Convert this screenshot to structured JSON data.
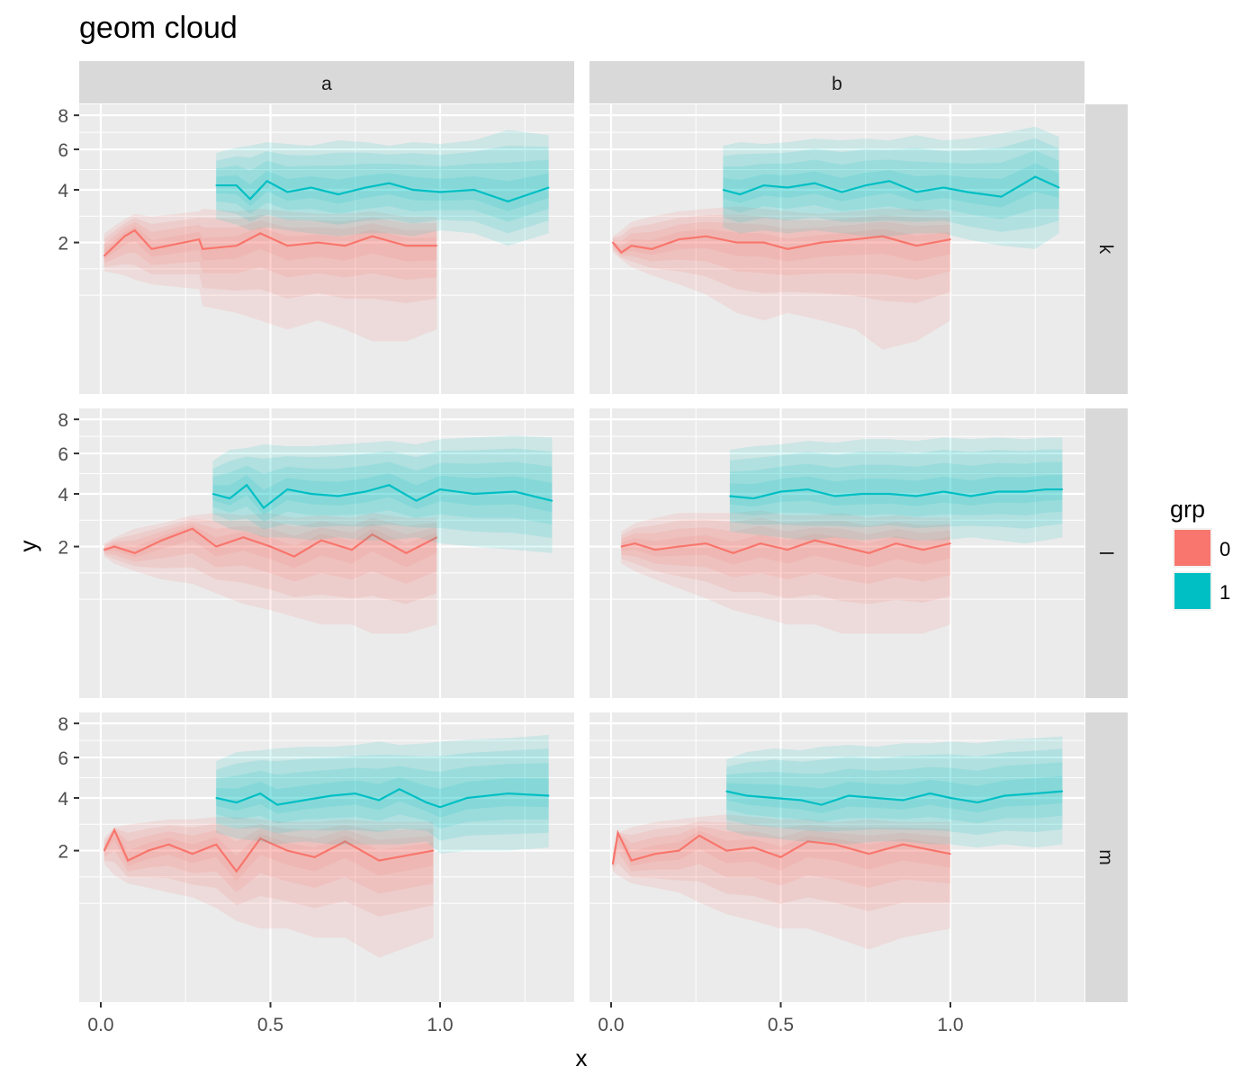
{
  "chart_data": {
    "type": "line",
    "title": "geom cloud",
    "xlabel": "x",
    "ylabel": "y",
    "y_scale": "sqrt",
    "xlim": [
      -0.06,
      1.4
    ],
    "ylim": [
      -0.07,
      9
    ],
    "x_ticks": [
      {
        "v": 0,
        "label": "0.0"
      },
      {
        "v": 0.5,
        "label": "0.5"
      },
      {
        "v": 1,
        "label": "1.0"
      }
    ],
    "y_ticks": [
      {
        "v": 2,
        "label": "2"
      },
      {
        "v": 4,
        "label": "4"
      },
      {
        "v": 6,
        "label": "6"
      },
      {
        "v": 8,
        "label": "8"
      }
    ],
    "grid": true,
    "facet_cols": [
      "a",
      "b"
    ],
    "facet_rows": [
      "k",
      "l",
      "m"
    ],
    "legend": {
      "title": "grp",
      "position": "right",
      "entries": [
        {
          "label": "0",
          "color": "#F8766D"
        },
        {
          "label": "1",
          "color": "#00BFC4"
        }
      ]
    },
    "series": [
      {
        "col": "a",
        "row": "k",
        "grp": "0",
        "x": [
          0.01,
          0.07,
          0.1,
          0.15,
          0.29,
          0.3,
          0.4,
          0.47,
          0.55,
          0.64,
          0.72,
          0.8,
          0.9,
          0.99
        ],
        "y": [
          1.6,
          2.2,
          2.4,
          1.8,
          2.1,
          1.8,
          1.9,
          2.3,
          1.9,
          2.0,
          1.9,
          2.2,
          1.9,
          1.9
        ],
        "lower": [
          1.2,
          1.1,
          1.0,
          0.9,
          0.8,
          0.5,
          0.4,
          0.3,
          0.2,
          0.3,
          0.2,
          0.1,
          0.1,
          0.2
        ],
        "upper": [
          2.3,
          2.8,
          3.0,
          2.9,
          3.1,
          3.2,
          3.1,
          3.2,
          3.1,
          3.0,
          3.0,
          3.1,
          2.9,
          2.9
        ]
      },
      {
        "col": "a",
        "row": "k",
        "grp": "1",
        "x": [
          0.34,
          0.4,
          0.44,
          0.49,
          0.55,
          0.62,
          0.7,
          0.78,
          0.85,
          0.92,
          1.0,
          1.1,
          1.2,
          1.32
        ],
        "y": [
          4.2,
          4.2,
          3.6,
          4.4,
          3.9,
          4.1,
          3.8,
          4.1,
          4.3,
          4.0,
          3.9,
          4.0,
          3.5,
          4.1
        ],
        "lower": [
          2.8,
          2.6,
          2.4,
          2.5,
          2.4,
          2.3,
          2.2,
          2.3,
          2.3,
          2.2,
          2.4,
          2.3,
          1.9,
          2.3
        ],
        "upper": [
          5.8,
          6.1,
          6.2,
          6.4,
          6.3,
          6.2,
          6.5,
          6.4,
          6.2,
          6.4,
          6.3,
          6.5,
          7.1,
          6.8
        ]
      },
      {
        "col": "b",
        "row": "k",
        "grp": "0",
        "x": [
          0.005,
          0.03,
          0.06,
          0.12,
          0.2,
          0.28,
          0.37,
          0.45,
          0.52,
          0.62,
          0.72,
          0.8,
          0.9,
          1.0
        ],
        "y": [
          2.0,
          1.7,
          1.9,
          1.8,
          2.1,
          2.2,
          2.0,
          2.0,
          1.8,
          2.0,
          2.1,
          2.2,
          1.9,
          2.1
        ],
        "lower": [
          1.7,
          1.5,
          1.3,
          1.1,
          0.9,
          0.7,
          0.4,
          0.3,
          0.4,
          0.3,
          0.2,
          0.05,
          0.1,
          0.3
        ],
        "upper": [
          2.2,
          2.4,
          2.7,
          2.9,
          3.1,
          3.2,
          3.3,
          3.2,
          3.1,
          3.0,
          3.1,
          3.2,
          3.2,
          3.1
        ]
      },
      {
        "col": "b",
        "row": "k",
        "grp": "1",
        "x": [
          0.33,
          0.38,
          0.45,
          0.52,
          0.6,
          0.68,
          0.75,
          0.82,
          0.9,
          0.98,
          1.05,
          1.15,
          1.25,
          1.32
        ],
        "y": [
          4.0,
          3.8,
          4.2,
          4.1,
          4.3,
          3.9,
          4.2,
          4.4,
          3.9,
          4.1,
          3.9,
          3.7,
          4.6,
          4.1
        ],
        "lower": [
          2.5,
          2.3,
          2.4,
          2.3,
          2.4,
          2.3,
          2.2,
          2.2,
          2.3,
          2.3,
          2.1,
          1.9,
          1.8,
          2.3
        ],
        "upper": [
          6.2,
          6.4,
          6.3,
          6.4,
          6.6,
          6.5,
          6.6,
          6.5,
          6.8,
          6.5,
          6.6,
          6.9,
          7.3,
          6.7
        ]
      },
      {
        "col": "a",
        "row": "l",
        "grp": "0",
        "x": [
          0.01,
          0.04,
          0.1,
          0.18,
          0.27,
          0.34,
          0.42,
          0.5,
          0.57,
          0.65,
          0.74,
          0.8,
          0.9,
          0.99
        ],
        "y": [
          1.9,
          2.0,
          1.8,
          2.2,
          2.6,
          2.0,
          2.3,
          2.0,
          1.7,
          2.2,
          1.9,
          2.4,
          1.8,
          2.3
        ],
        "lower": [
          1.7,
          1.5,
          1.3,
          1.1,
          1.0,
          0.8,
          0.6,
          0.5,
          0.4,
          0.3,
          0.3,
          0.2,
          0.2,
          0.3
        ],
        "upper": [
          2.1,
          2.3,
          2.6,
          2.8,
          3.1,
          3.2,
          3.1,
          3.2,
          3.0,
          3.1,
          3.0,
          3.2,
          3.0,
          3.0
        ]
      },
      {
        "col": "a",
        "row": "l",
        "grp": "1",
        "x": [
          0.33,
          0.38,
          0.43,
          0.48,
          0.55,
          0.62,
          0.7,
          0.78,
          0.85,
          0.93,
          1.0,
          1.1,
          1.22,
          1.33
        ],
        "y": [
          4.0,
          3.8,
          4.4,
          3.4,
          4.2,
          4.0,
          3.9,
          4.1,
          4.4,
          3.7,
          4.2,
          4.0,
          4.1,
          3.7
        ],
        "lower": [
          2.9,
          2.6,
          2.5,
          2.3,
          2.3,
          2.2,
          2.3,
          2.2,
          2.2,
          2.3,
          2.1,
          2.0,
          1.9,
          1.8
        ],
        "upper": [
          5.6,
          6.2,
          6.3,
          6.5,
          6.4,
          6.4,
          6.5,
          6.6,
          6.7,
          6.5,
          6.8,
          6.9,
          7.0,
          6.9
        ]
      },
      {
        "col": "b",
        "row": "l",
        "grp": "0",
        "x": [
          0.03,
          0.07,
          0.13,
          0.2,
          0.28,
          0.36,
          0.44,
          0.52,
          0.6,
          0.68,
          0.76,
          0.84,
          0.92,
          1.0
        ],
        "y": [
          2.0,
          2.1,
          1.9,
          2.0,
          2.1,
          1.8,
          2.1,
          1.9,
          2.2,
          2.0,
          1.8,
          2.1,
          1.9,
          2.1
        ],
        "lower": [
          1.5,
          1.3,
          1.1,
          0.9,
          0.7,
          0.5,
          0.4,
          0.3,
          0.3,
          0.2,
          0.2,
          0.2,
          0.2,
          0.3
        ],
        "upper": [
          2.5,
          2.8,
          3.0,
          3.2,
          3.2,
          3.2,
          3.3,
          3.1,
          3.1,
          3.2,
          3.0,
          3.1,
          3.0,
          3.0
        ]
      },
      {
        "col": "b",
        "row": "l",
        "grp": "1",
        "x": [
          0.35,
          0.42,
          0.5,
          0.58,
          0.66,
          0.74,
          0.82,
          0.9,
          0.98,
          1.06,
          1.14,
          1.22,
          1.28,
          1.33
        ],
        "y": [
          3.9,
          3.8,
          4.1,
          4.2,
          3.9,
          4.0,
          4.0,
          3.9,
          4.1,
          3.9,
          4.1,
          4.1,
          4.2,
          4.2
        ],
        "lower": [
          2.5,
          2.4,
          2.3,
          2.2,
          2.3,
          2.2,
          2.3,
          2.2,
          2.2,
          2.3,
          2.2,
          2.1,
          2.2,
          2.3
        ],
        "upper": [
          6.2,
          6.4,
          6.5,
          6.7,
          6.6,
          6.8,
          6.8,
          6.7,
          6.9,
          6.8,
          6.9,
          6.8,
          6.9,
          6.9
        ]
      },
      {
        "col": "a",
        "row": "m",
        "grp": "0",
        "x": [
          0.01,
          0.04,
          0.08,
          0.14,
          0.2,
          0.27,
          0.34,
          0.4,
          0.47,
          0.55,
          0.63,
          0.72,
          0.82,
          0.98
        ],
        "y": [
          2.0,
          2.7,
          1.7,
          2.0,
          2.2,
          1.9,
          2.2,
          1.4,
          2.4,
          2.0,
          1.8,
          2.3,
          1.7,
          2.0
        ],
        "lower": [
          1.6,
          1.3,
          1.1,
          1.0,
          0.9,
          0.8,
          0.6,
          0.4,
          0.3,
          0.3,
          0.2,
          0.2,
          0.05,
          0.2
        ],
        "upper": [
          2.4,
          2.8,
          2.9,
          3.0,
          3.1,
          3.1,
          3.2,
          3.2,
          3.1,
          3.0,
          3.0,
          3.1,
          3.0,
          3.0
        ]
      },
      {
        "col": "a",
        "row": "m",
        "grp": "1",
        "x": [
          0.34,
          0.4,
          0.47,
          0.52,
          0.6,
          0.68,
          0.75,
          0.82,
          0.88,
          0.96,
          1.0,
          1.08,
          1.2,
          1.32
        ],
        "y": [
          4.0,
          3.8,
          4.2,
          3.7,
          3.9,
          4.1,
          4.2,
          3.9,
          4.4,
          3.8,
          3.6,
          4.0,
          4.2,
          4.1
        ],
        "lower": [
          2.6,
          2.4,
          2.3,
          2.2,
          2.3,
          2.2,
          2.2,
          2.2,
          2.2,
          2.3,
          1.9,
          2.0,
          2.0,
          2.1
        ],
        "upper": [
          5.8,
          6.3,
          6.4,
          6.5,
          6.6,
          6.6,
          6.7,
          6.9,
          6.7,
          6.8,
          6.9,
          7.0,
          7.1,
          7.3
        ]
      },
      {
        "col": "b",
        "row": "m",
        "grp": "0",
        "x": [
          0.005,
          0.02,
          0.06,
          0.13,
          0.2,
          0.26,
          0.34,
          0.42,
          0.5,
          0.58,
          0.66,
          0.76,
          0.86,
          1.0
        ],
        "y": [
          1.6,
          2.6,
          1.7,
          1.9,
          2.0,
          2.5,
          2.0,
          2.1,
          1.8,
          2.3,
          2.2,
          1.9,
          2.2,
          1.9
        ],
        "lower": [
          1.4,
          1.3,
          1.1,
          1.0,
          0.9,
          0.7,
          0.5,
          0.4,
          0.3,
          0.3,
          0.2,
          0.1,
          0.2,
          0.3
        ],
        "upper": [
          2.0,
          2.6,
          2.8,
          3.0,
          3.1,
          3.2,
          3.3,
          3.2,
          3.1,
          3.1,
          3.0,
          3.1,
          3.0,
          3.0
        ]
      },
      {
        "col": "b",
        "row": "m",
        "grp": "1",
        "x": [
          0.34,
          0.4,
          0.48,
          0.56,
          0.62,
          0.7,
          0.78,
          0.86,
          0.94,
          1.0,
          1.08,
          1.16,
          1.25,
          1.33
        ],
        "y": [
          4.3,
          4.1,
          4.0,
          3.9,
          3.7,
          4.1,
          4.0,
          3.9,
          4.2,
          4.0,
          3.8,
          4.1,
          4.2,
          4.3
        ],
        "lower": [
          2.7,
          2.5,
          2.4,
          2.3,
          2.3,
          2.2,
          2.3,
          2.3,
          2.2,
          2.2,
          2.1,
          2.2,
          2.1,
          2.2
        ],
        "upper": [
          5.9,
          6.3,
          6.5,
          6.4,
          6.6,
          6.7,
          6.6,
          6.8,
          6.8,
          6.9,
          6.8,
          7.0,
          7.1,
          7.2
        ]
      }
    ]
  }
}
